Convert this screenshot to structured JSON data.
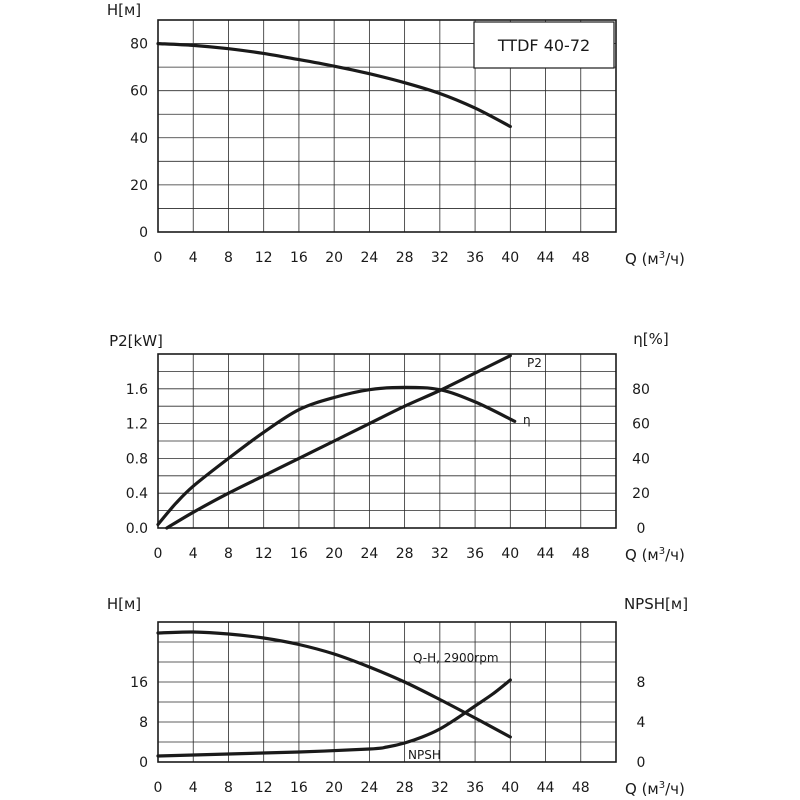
{
  "chart_data": [
    {
      "type": "line",
      "title": "TTDF 40-72",
      "ylabel": "H[м]",
      "xlabel": "Q (м3/ч)",
      "xlabel_base": "Q (м",
      "xlabel_sup": "3",
      "xlabel_tail": "/ч)",
      "xlim": [
        0,
        52
      ],
      "ylim": [
        0,
        90
      ],
      "x_ticks": [
        0,
        4,
        8,
        12,
        16,
        20,
        24,
        28,
        32,
        36,
        40,
        44,
        48
      ],
      "y_ticks": [
        0,
        20,
        40,
        60,
        80
      ],
      "grid": true,
      "series": [
        {
          "x": [
            0,
            4,
            8,
            12,
            16,
            20,
            24,
            28,
            32,
            36,
            40
          ],
          "y": [
            80,
            79.2,
            77.8,
            75.8,
            73.2,
            70.4,
            67.2,
            63.4,
            58.8,
            52.6,
            44.8
          ]
        }
      ]
    },
    {
      "type": "line",
      "ylabel": "P2[kW]",
      "y2label": "η[%]",
      "xlabel": "Q (м3/ч)",
      "xlabel_base": "Q (м",
      "xlabel_sup": "3",
      "xlabel_tail": "/ч)",
      "xlim": [
        0,
        52
      ],
      "ylim": [
        0,
        2.0
      ],
      "y2lim": [
        0,
        100
      ],
      "x_ticks": [
        0,
        4,
        8,
        12,
        16,
        20,
        24,
        28,
        32,
        36,
        40,
        44,
        48
      ],
      "y_ticks": [
        "0.0",
        "0.4",
        "0.8",
        "1.2",
        "1.6"
      ],
      "y2_ticks": [
        0,
        20,
        40,
        60,
        80
      ],
      "grid": true,
      "series": [
        {
          "name": "P2",
          "axis": "left",
          "x": [
            1,
            4,
            8,
            12,
            16,
            20,
            24,
            28,
            32,
            36,
            40
          ],
          "y": [
            0.0,
            0.18,
            0.4,
            0.6,
            0.8,
            1.0,
            1.2,
            1.4,
            1.58,
            1.78,
            1.98
          ]
        },
        {
          "name": "η",
          "axis": "right",
          "x": [
            0,
            2,
            4,
            8,
            12,
            16,
            20,
            24,
            28,
            32,
            36,
            40.5
          ],
          "y": [
            2,
            14,
            24,
            40,
            55,
            68,
            75,
            79.5,
            80.8,
            79.5,
            72.5,
            61.3
          ]
        }
      ]
    },
    {
      "type": "line",
      "ylabel": "H[м]",
      "y2label": "NPSH[м]",
      "xlabel": "Q (м3/ч)",
      "xlabel_base": "Q (м",
      "xlabel_sup": "3",
      "xlabel_tail": "/ч)",
      "xlim": [
        0,
        52
      ],
      "ylim": [
        0,
        28
      ],
      "y2lim": [
        0,
        14
      ],
      "x_ticks": [
        0,
        4,
        8,
        12,
        16,
        20,
        24,
        28,
        32,
        36,
        40,
        44,
        48
      ],
      "y_ticks": [
        0,
        8,
        16
      ],
      "y2_ticks": [
        0,
        4,
        8
      ],
      "grid": true,
      "series": [
        {
          "name": "Q-H, 2900rpm",
          "axis": "left",
          "x": [
            0,
            4,
            8,
            12,
            16,
            20,
            24,
            28,
            32,
            36,
            40
          ],
          "y": [
            25.8,
            26.0,
            25.6,
            24.8,
            23.5,
            21.6,
            19.0,
            16.0,
            12.5,
            8.8,
            5.0
          ]
        },
        {
          "name": "NPSH",
          "axis": "right",
          "x": [
            0,
            8,
            16,
            24,
            26,
            28,
            30,
            32,
            34,
            36,
            38,
            40
          ],
          "y": [
            0.6,
            0.8,
            1.0,
            1.3,
            1.5,
            1.9,
            2.5,
            3.3,
            4.4,
            5.6,
            6.8,
            8.2
          ]
        }
      ]
    }
  ]
}
